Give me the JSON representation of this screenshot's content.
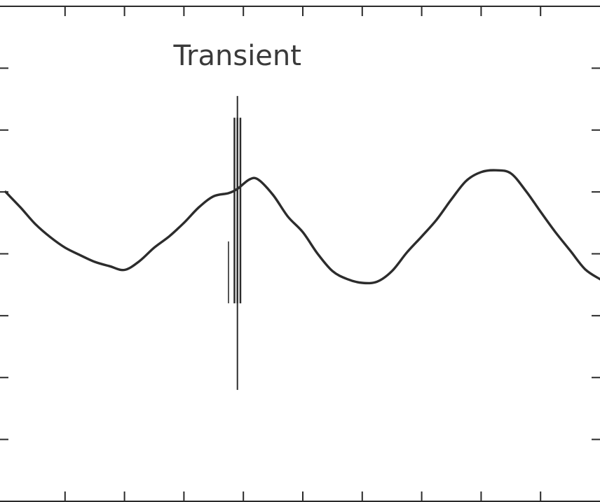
{
  "chart_data": {
    "type": "line",
    "title": "",
    "xlabel": "",
    "ylabel": "",
    "xlim": [
      0,
      10
    ],
    "ylim": [
      -4,
      4
    ],
    "x_ticks": [
      1,
      2,
      3,
      4,
      5,
      6,
      7,
      8,
      9
    ],
    "y_ticks": [
      -3,
      -2,
      -1,
      0,
      1,
      2,
      3
    ],
    "grid": false,
    "series": [
      {
        "x": [
          0,
          0.25,
          0.5,
          0.75,
          1.0,
          1.25,
          1.5,
          1.75,
          2.0,
          2.25,
          2.5,
          2.75,
          3.0,
          3.25,
          3.5,
          3.75,
          3.9,
          4.1,
          4.25,
          4.5,
          4.75,
          5.0,
          5.25,
          5.5,
          5.75,
          6.0,
          6.25,
          6.5,
          6.75,
          7.0,
          7.25,
          7.5,
          7.75,
          8.0,
          8.25,
          8.5,
          8.75,
          9.0,
          9.25,
          9.5,
          9.75,
          10.0
        ],
        "y": [
          1.0,
          0.75,
          0.48,
          0.27,
          0.1,
          -0.02,
          -0.13,
          -0.2,
          -0.26,
          -0.12,
          0.1,
          0.28,
          0.5,
          0.75,
          0.93,
          0.98,
          1.05,
          1.2,
          1.2,
          0.95,
          0.6,
          0.35,
          0.0,
          -0.28,
          -0.41,
          -0.47,
          -0.45,
          -0.28,
          0.02,
          0.28,
          0.55,
          0.88,
          1.18,
          1.32,
          1.35,
          1.3,
          1.02,
          0.68,
          0.35,
          0.05,
          -0.25,
          -0.41
        ]
      }
    ],
    "annotations": [
      {
        "text": "Transient",
        "x": 3.9,
        "y": 3.05,
        "spike": {
          "x": 3.9,
          "y_max": 2.55,
          "y_min": -2.2,
          "dense_x": [
            3.85,
            3.95
          ],
          "dense_y": [
            2.2,
            -0.8
          ],
          "side_x": 3.75,
          "side_y": [
            0.2,
            -0.8
          ]
        }
      }
    ]
  }
}
